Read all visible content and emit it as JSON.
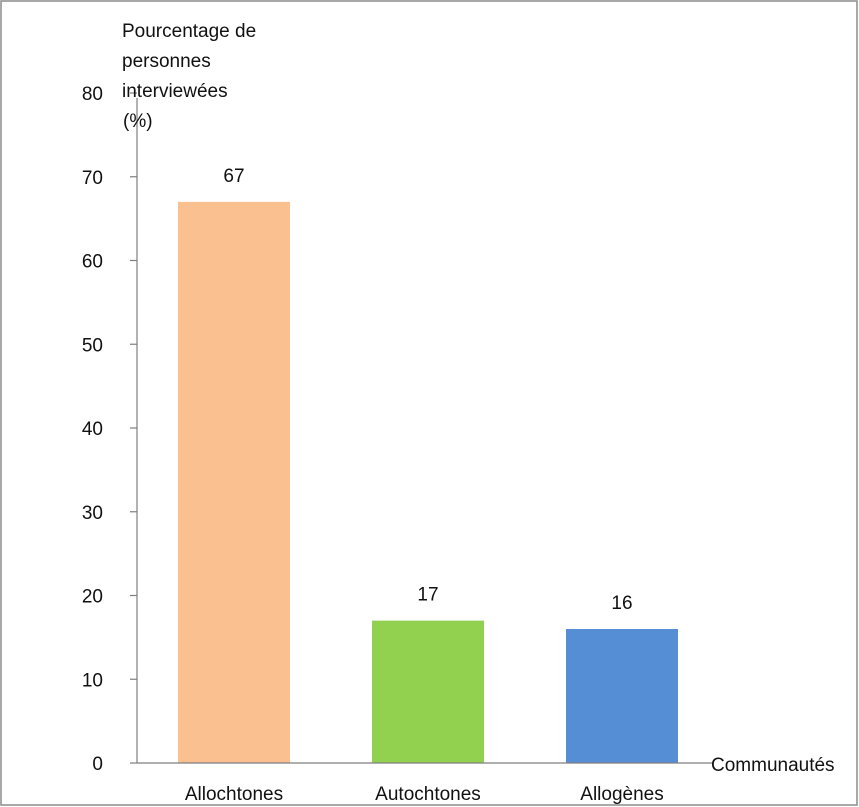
{
  "chart_data": {
    "type": "bar",
    "categories": [
      "Allochtones",
      "Autochtones",
      "Allogènes"
    ],
    "values": [
      67,
      17,
      16
    ],
    "data_labels": [
      "67",
      "17",
      "16"
    ],
    "colors": [
      "#fac090",
      "#92d050",
      "#558ed5"
    ],
    "ylabel_lines": [
      "Pourcentage de",
      "personnes",
      "interviewées",
      "(%)"
    ],
    "xlabel": "Communautés",
    "ylim": [
      0,
      80
    ],
    "yticks": [
      0,
      10,
      20,
      30,
      40,
      50,
      60,
      70,
      80
    ],
    "ytick_labels": [
      "0",
      "10",
      "20",
      "30",
      "40",
      "50",
      "60",
      "70",
      "80"
    ],
    "grid": false,
    "legend": "none"
  }
}
